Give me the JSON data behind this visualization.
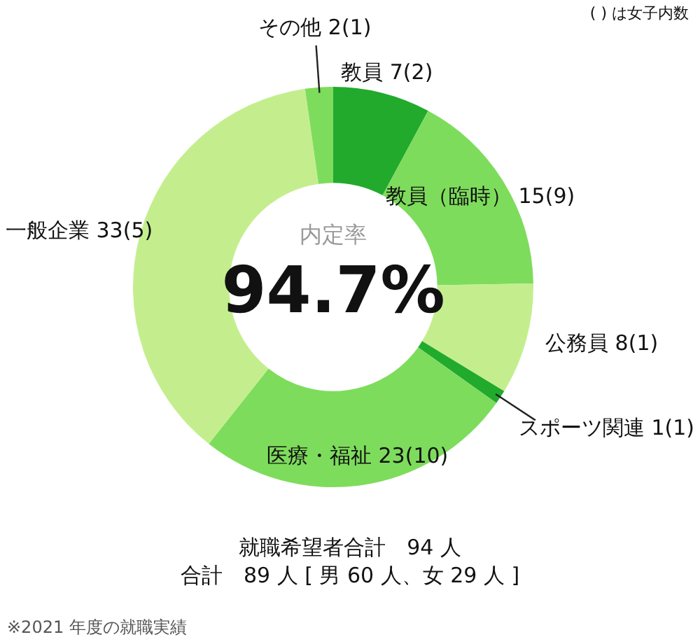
{
  "chart_data": {
    "type": "donut",
    "categories": [
      "教員",
      "教員（臨時）",
      "公務員",
      "スポーツ関連",
      "医療・福祉",
      "一般企業",
      "その他"
    ],
    "values": [
      7,
      15,
      8,
      1,
      23,
      33,
      2
    ],
    "value_labels": [
      "7(2)",
      "15(9)",
      "8(1)",
      "1(1)",
      "23(10)",
      "33(5)",
      "2(1)"
    ],
    "colors": [
      "#22aa2d",
      "#7edc5c",
      "#c4ee8e",
      "#22aa2d",
      "#7edc5c",
      "#c4ee8e",
      "#7edc5c"
    ],
    "legend": false,
    "annotations": [
      "( ) は女子内数",
      "内定率",
      "94.7%",
      "就職希望者合計　94 人",
      "合計　89 人 [ 男 60 人、女 29 人 ]",
      "※2021 年度の就職実績"
    ]
  }
}
